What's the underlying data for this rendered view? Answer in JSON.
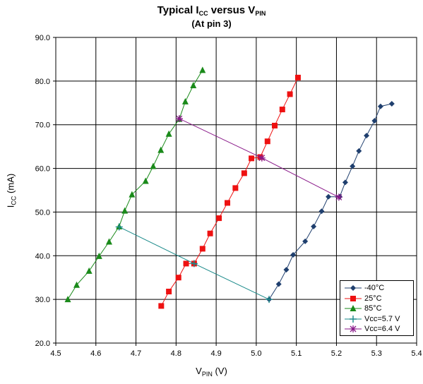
{
  "chart_data": {
    "type": "line",
    "title_main": "Typical I",
    "title_sub1": "CC",
    "title_mid": " versus V",
    "title_sub2": "PIN",
    "subtitle": "(At pin 3)",
    "xlabel_main": "V",
    "xlabel_sub": "PIN",
    "xlabel_unit": " (V)",
    "ylabel_main": "I",
    "ylabel_sub": "CC",
    "ylabel_unit": " (mA)",
    "xlim": [
      4.5,
      5.4
    ],
    "ylim": [
      20.0,
      90.0
    ],
    "x_ticks": [
      "4.5",
      "4.6",
      "4.7",
      "4.8",
      "4.9",
      "5.0",
      "5.1",
      "5.2",
      "5.3",
      "5.4"
    ],
    "y_ticks": [
      "20.0",
      "30.0",
      "40.0",
      "50.0",
      "60.0",
      "70.0",
      "80.0",
      "90.0"
    ],
    "grid": true,
    "legend_position": "bottom-right",
    "series": [
      {
        "name": "-40°C",
        "color": "#1f3f6e",
        "marker": "diamond",
        "points": [
          [
            5.032,
            30.0
          ],
          [
            5.056,
            33.5
          ],
          [
            5.075,
            36.8
          ],
          [
            5.092,
            40.2
          ],
          [
            5.122,
            43.3
          ],
          [
            5.143,
            46.7
          ],
          [
            5.163,
            50.2
          ],
          [
            5.18,
            53.5
          ],
          [
            5.208,
            53.5
          ],
          [
            5.222,
            56.8
          ],
          [
            5.24,
            60.5
          ],
          [
            5.256,
            64.0
          ],
          [
            5.275,
            67.5
          ],
          [
            5.295,
            70.9
          ],
          [
            5.31,
            74.2
          ],
          [
            5.338,
            74.8
          ]
        ]
      },
      {
        "name": "25°C",
        "color": "#ee1111",
        "marker": "square",
        "points": [
          [
            4.763,
            28.5
          ],
          [
            4.782,
            31.8
          ],
          [
            4.806,
            35.0
          ],
          [
            4.825,
            38.2
          ],
          [
            4.845,
            38.2
          ],
          [
            4.866,
            41.6
          ],
          [
            4.885,
            45.1
          ],
          [
            4.907,
            48.6
          ],
          [
            4.928,
            52.1
          ],
          [
            4.948,
            55.5
          ],
          [
            4.97,
            58.9
          ],
          [
            4.988,
            62.3
          ],
          [
            5.01,
            62.6
          ],
          [
            5.028,
            66.2
          ],
          [
            5.046,
            69.8
          ],
          [
            5.065,
            73.5
          ],
          [
            5.084,
            77.0
          ],
          [
            5.104,
            80.8
          ]
        ]
      },
      {
        "name": "85°C",
        "color": "#1a8a1a",
        "marker": "triangle",
        "points": [
          [
            4.53,
            30.0
          ],
          [
            4.552,
            33.3
          ],
          [
            4.583,
            36.5
          ],
          [
            4.608,
            39.9
          ],
          [
            4.633,
            43.2
          ],
          [
            4.658,
            46.7
          ],
          [
            4.672,
            50.3
          ],
          [
            4.69,
            54.0
          ],
          [
            4.724,
            57.1
          ],
          [
            4.743,
            60.5
          ],
          [
            4.762,
            64.2
          ],
          [
            4.782,
            67.9
          ],
          [
            4.808,
            71.3
          ],
          [
            4.823,
            75.3
          ],
          [
            4.843,
            79.0
          ],
          [
            4.866,
            82.5
          ]
        ]
      },
      {
        "name": "Vcc=5.7 V",
        "color": "#1a8a8a",
        "marker": "plus",
        "points": [
          [
            4.658,
            46.6
          ],
          [
            4.845,
            38.2
          ],
          [
            5.032,
            30.0
          ]
        ]
      },
      {
        "name": "Vcc=6.4 V",
        "color": "#8a1a8a",
        "marker": "star",
        "points": [
          [
            4.808,
            71.4
          ],
          [
            5.014,
            62.4
          ],
          [
            5.206,
            53.4
          ]
        ]
      }
    ]
  }
}
